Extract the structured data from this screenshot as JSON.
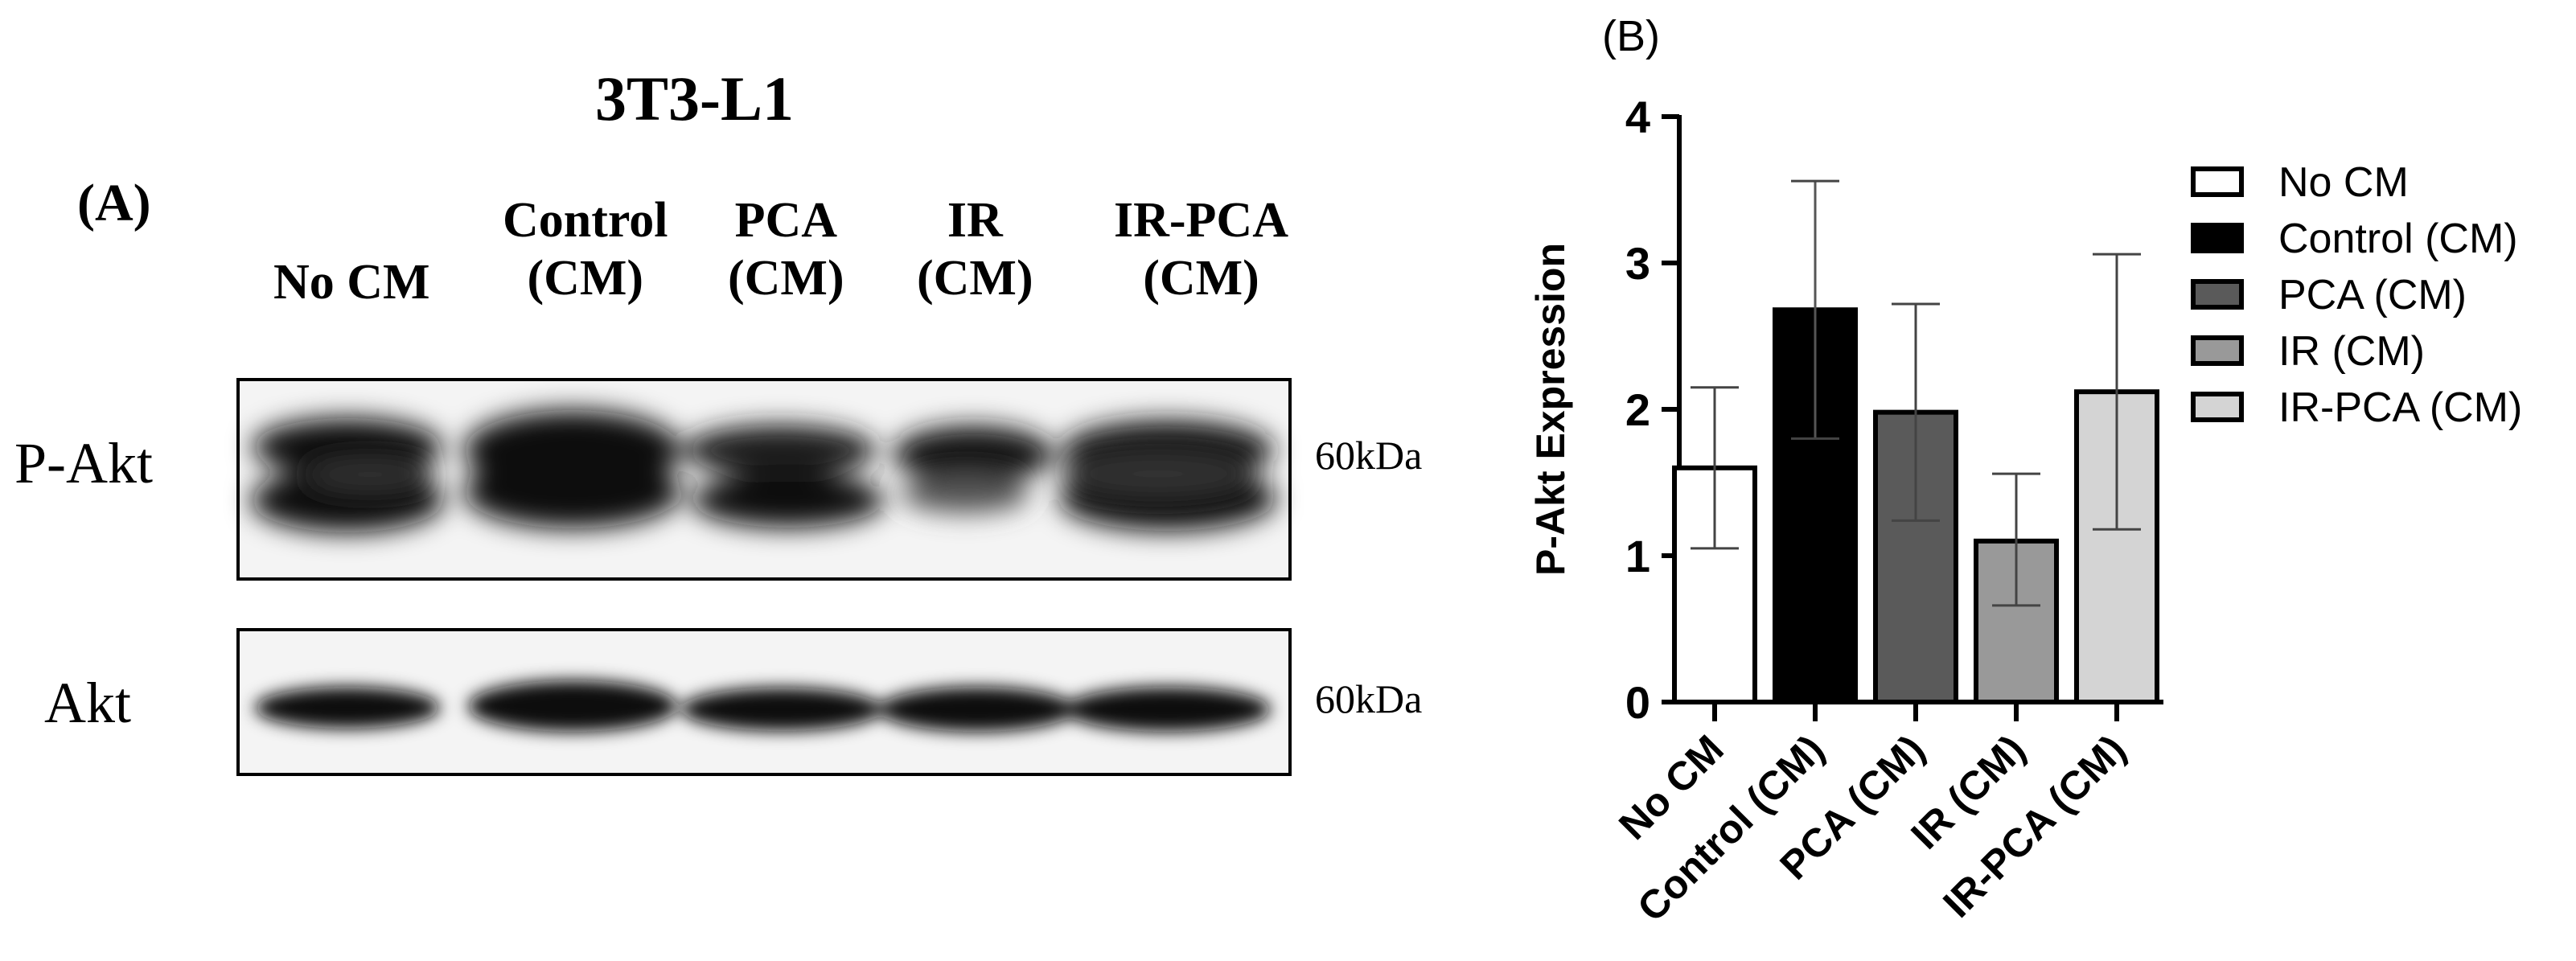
{
  "panel_a": {
    "panel_label": "(A)",
    "cell_line": "3T3-L1",
    "lanes": [
      {
        "line1": "No CM",
        "line2": ""
      },
      {
        "line1": "Control",
        "line2": "(CM)"
      },
      {
        "line1": "PCA",
        "line2": "(CM)"
      },
      {
        "line1": "IR",
        "line2": "(CM)"
      },
      {
        "line1": "IR-PCA",
        "line2": "(CM)"
      }
    ],
    "blots": [
      {
        "label": "P-Akt",
        "size": "60kDa"
      },
      {
        "label": "Akt",
        "size": "60kDa"
      }
    ]
  },
  "chart_data": {
    "type": "bar",
    "panel_label": "(B)",
    "categories": [
      "No CM",
      "Control (CM)",
      "PCA (CM)",
      "IR (CM)",
      "IR-PCA (CM)"
    ],
    "values": [
      1.6,
      2.68,
      1.98,
      1.1,
      2.12
    ],
    "error_upper": [
      2.15,
      3.56,
      2.72,
      1.56,
      3.06
    ],
    "error_lower": [
      1.05,
      1.8,
      1.24,
      0.66,
      1.18
    ],
    "ylabel": "P-Akt Expression",
    "xlabel": "",
    "ylim": [
      0,
      4
    ],
    "yticks": [
      0,
      1,
      2,
      3,
      4
    ],
    "grid": false,
    "legend_position": "right",
    "colors": [
      "#ffffff",
      "#000000",
      "#5a5a5a",
      "#999999",
      "#d4d4d4"
    ],
    "legend": [
      "No CM",
      "Control (CM)",
      "PCA (CM)",
      "IR (CM)",
      "IR-PCA (CM)"
    ]
  }
}
